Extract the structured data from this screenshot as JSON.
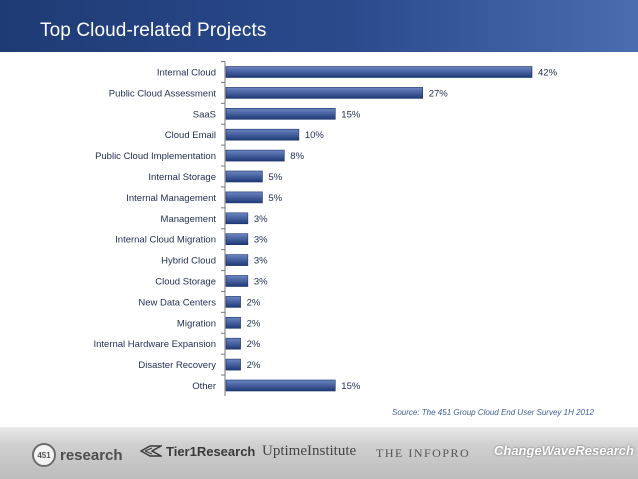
{
  "slide": {
    "title": "Top Cloud-related Projects",
    "source": "Source: The 451 Group Cloud End User Survey 1H 2012"
  },
  "colors": {
    "title_bar": "#2a4a8c",
    "bar_top": "#6b86c1",
    "bar_bottom": "#1f3a78",
    "bar_border": "#1c336a",
    "label_text": "#1f2d50"
  },
  "footer": {
    "logos": [
      {
        "name": "451 research",
        "mark": "451",
        "word": "research"
      },
      {
        "name": "Tier1Research",
        "word": "Tier1Research"
      },
      {
        "name": "UptimeInstitute",
        "word": "UptimeInstitute"
      },
      {
        "name": "THE INFOPRO",
        "word": "THE INFOPRO"
      },
      {
        "name": "ChangeWaveResearch",
        "word": "ChangeWaveResearch"
      }
    ]
  },
  "chart_data": {
    "type": "bar",
    "orientation": "horizontal",
    "title": "Top Cloud-related Projects",
    "xlabel": "",
    "ylabel": "",
    "value_suffix": "%",
    "xlim": [
      0,
      42
    ],
    "grid": false,
    "categories": [
      "Internal Cloud",
      "Public Cloud Assessment",
      "SaaS",
      "Cloud Email",
      "Public Cloud Implementation",
      "Internal Storage",
      "Internal Management",
      "Management",
      "Internal Cloud Migration",
      "Hybrid Cloud",
      "Cloud Storage",
      "New Data Centers",
      "Migration",
      "Internal Hardware Expansion",
      "Disaster Recovery",
      "Other"
    ],
    "values": [
      42,
      27,
      15,
      10,
      8,
      5,
      5,
      3,
      3,
      3,
      3,
      2,
      2,
      2,
      2,
      15
    ],
    "value_labels": [
      "42%",
      "27%",
      "15%",
      "10%",
      "8%",
      "5%",
      "5%",
      "3%",
      "3%",
      "3%",
      "3%",
      "2%",
      "2%",
      "2%",
      "2%",
      "15%"
    ]
  }
}
